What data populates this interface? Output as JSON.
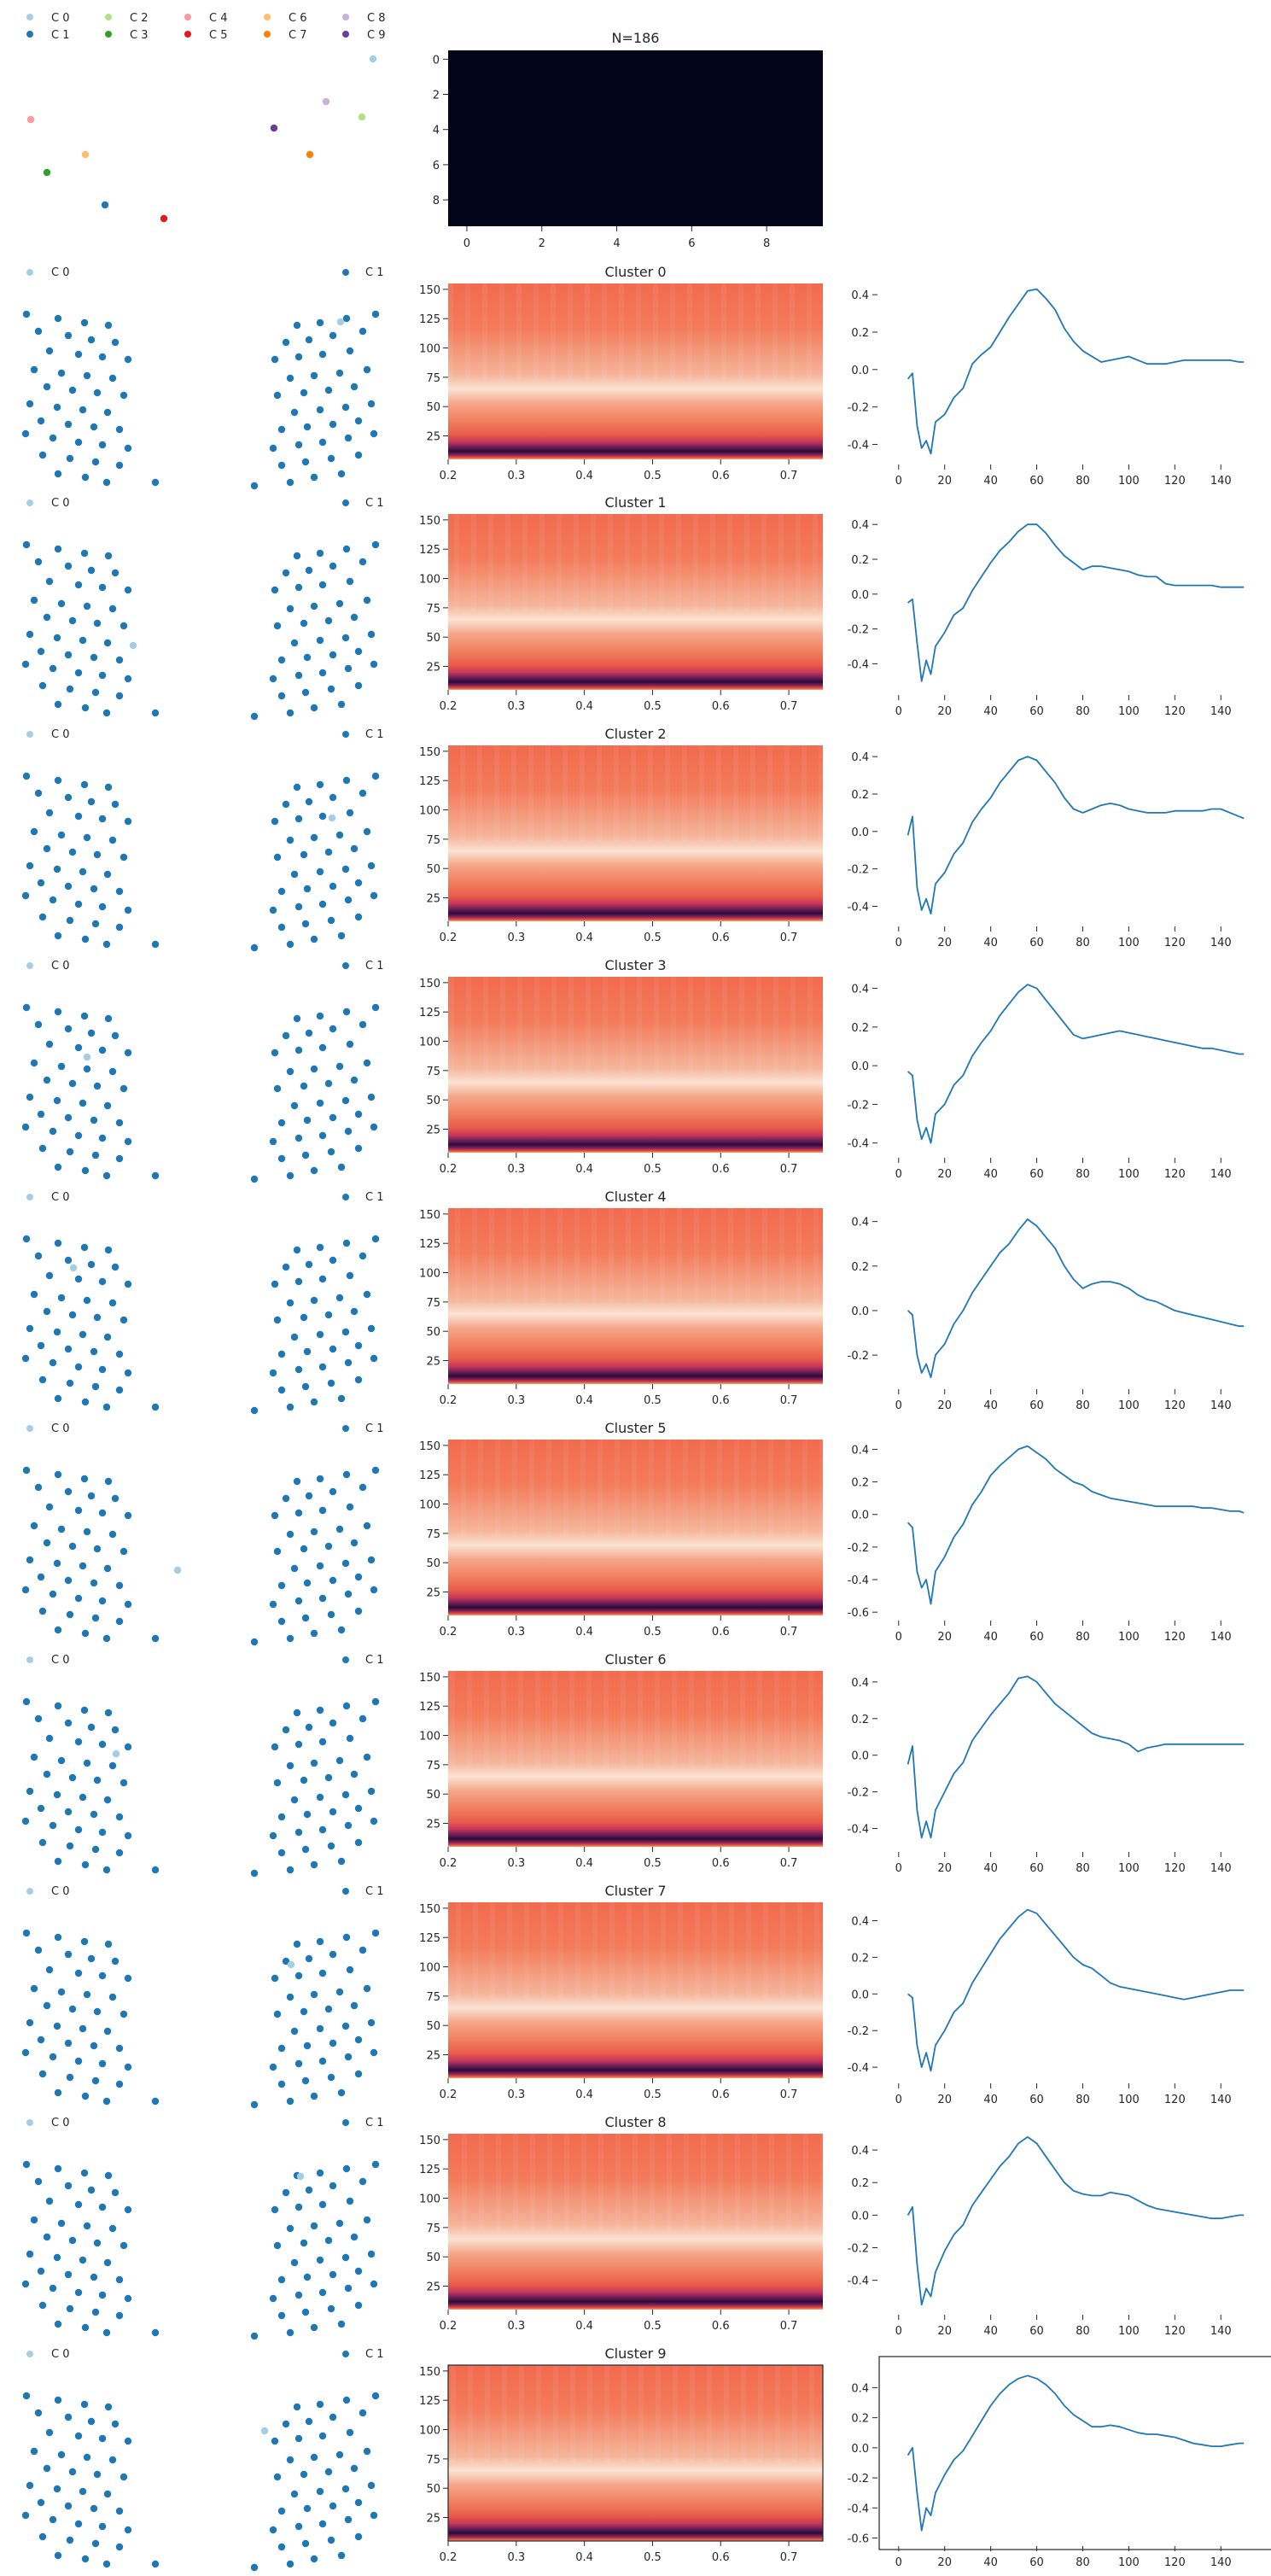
{
  "figure": {
    "top_row": {
      "legend": {
        "entries": [
          {
            "label": "C 0",
            "color": "#a6cee3"
          },
          {
            "label": "C 1",
            "color": "#1f78b4"
          },
          {
            "label": "C 2",
            "color": "#b2df8a"
          },
          {
            "label": "C 3",
            "color": "#33a02c"
          },
          {
            "label": "C 4",
            "color": "#fb9a99"
          },
          {
            "label": "C 5",
            "color": "#e31a1c"
          },
          {
            "label": "C 6",
            "color": "#fdbf6f"
          },
          {
            "label": "C 7",
            "color": "#ff7f00"
          },
          {
            "label": "C 8",
            "color": "#cab2d6"
          },
          {
            "label": "C 9",
            "color": "#6a3d9a"
          }
        ]
      },
      "heatmap_title": "N=186",
      "heatmap_color": "#03051a",
      "heatmap_xticks": [
        "0",
        "2",
        "4",
        "6",
        "8"
      ],
      "heatmap_yticks": [
        "0",
        "2",
        "4",
        "6",
        "8"
      ]
    },
    "cluster_legend": {
      "c0": "C 0",
      "c1": "C 1",
      "c0_color": "#a6cee3",
      "c1_color": "#1f78b4"
    },
    "spectrogram_xticks": [
      "0.2",
      "0.3",
      "0.4",
      "0.5",
      "0.6",
      "0.7"
    ],
    "spectrogram_yticks": [
      "25",
      "50",
      "75",
      "100",
      "125",
      "150"
    ],
    "line_xticks": [
      "0",
      "20",
      "40",
      "60",
      "80",
      "100",
      "120",
      "140"
    ],
    "line_color": "#1f77b4"
  },
  "chart_data": [
    {
      "type": "scatter",
      "title": "",
      "series": [
        {
          "name": "C 0",
          "values": []
        },
        {
          "name": "C 1",
          "values": []
        },
        {
          "name": "C 2",
          "values": []
        },
        {
          "name": "C 3",
          "values": []
        },
        {
          "name": "C 4",
          "values": []
        },
        {
          "name": "C 5",
          "values": []
        },
        {
          "name": "C 6",
          "values": []
        },
        {
          "name": "C 7",
          "values": []
        },
        {
          "name": "C 8",
          "values": []
        },
        {
          "name": "C 9",
          "values": []
        }
      ]
    },
    {
      "type": "heatmap",
      "title": "N=186",
      "x": [
        0,
        1,
        2,
        3,
        4,
        5,
        6,
        7,
        8,
        9
      ],
      "y": [
        0,
        1,
        2,
        3,
        4,
        5,
        6,
        7,
        8,
        9
      ]
    },
    {
      "type": "heatmap",
      "title": "Cluster 0",
      "xlim": [
        0.2,
        0.75
      ],
      "ylim": [
        5,
        155
      ]
    },
    {
      "type": "line",
      "title": "",
      "x": [
        4,
        6,
        8,
        10,
        12,
        14,
        16,
        20,
        24,
        28,
        32,
        36,
        40,
        44,
        48,
        52,
        56,
        60,
        64,
        68,
        72,
        76,
        80,
        84,
        88,
        92,
        96,
        100,
        104,
        108,
        112,
        116,
        120,
        124,
        128,
        132,
        136,
        140,
        144,
        148,
        150
      ],
      "y": [
        -0.05,
        -0.02,
        -0.3,
        -0.42,
        -0.38,
        -0.45,
        -0.28,
        -0.24,
        -0.15,
        -0.1,
        0.03,
        0.08,
        0.12,
        0.2,
        0.28,
        0.35,
        0.42,
        0.43,
        0.38,
        0.32,
        0.22,
        0.15,
        0.1,
        0.07,
        0.04,
        0.05,
        0.06,
        0.07,
        0.05,
        0.03,
        0.03,
        0.03,
        0.04,
        0.05,
        0.05,
        0.05,
        0.05,
        0.05,
        0.05,
        0.04,
        0.04
      ],
      "ylim": [
        -0.48,
        0.46
      ]
    },
    {
      "type": "heatmap",
      "title": "Cluster 1",
      "xlim": [
        0.2,
        0.75
      ],
      "ylim": [
        5,
        155
      ]
    },
    {
      "type": "line",
      "title": "",
      "x": [
        4,
        6,
        8,
        10,
        12,
        14,
        16,
        20,
        24,
        28,
        32,
        36,
        40,
        44,
        48,
        52,
        56,
        60,
        64,
        68,
        72,
        76,
        80,
        84,
        88,
        92,
        96,
        100,
        104,
        108,
        112,
        116,
        120,
        124,
        128,
        132,
        136,
        140,
        144,
        148,
        150
      ],
      "y": [
        -0.05,
        -0.03,
        -0.28,
        -0.5,
        -0.38,
        -0.46,
        -0.3,
        -0.22,
        -0.12,
        -0.08,
        0.02,
        0.1,
        0.18,
        0.25,
        0.3,
        0.36,
        0.4,
        0.4,
        0.35,
        0.28,
        0.22,
        0.18,
        0.14,
        0.16,
        0.16,
        0.15,
        0.14,
        0.13,
        0.11,
        0.1,
        0.1,
        0.06,
        0.05,
        0.05,
        0.05,
        0.05,
        0.05,
        0.04,
        0.04,
        0.04,
        0.04
      ],
      "ylim": [
        -0.55,
        0.46
      ]
    },
    {
      "type": "heatmap",
      "title": "Cluster 2",
      "xlim": [
        0.2,
        0.75
      ],
      "ylim": [
        5,
        155
      ]
    },
    {
      "type": "line",
      "title": "",
      "x": [
        4,
        6,
        8,
        10,
        12,
        14,
        16,
        20,
        24,
        28,
        32,
        36,
        40,
        44,
        48,
        52,
        56,
        60,
        64,
        68,
        72,
        76,
        80,
        84,
        88,
        92,
        96,
        100,
        104,
        108,
        112,
        116,
        120,
        124,
        128,
        132,
        136,
        140,
        144,
        148,
        150
      ],
      "y": [
        -0.02,
        0.08,
        -0.3,
        -0.42,
        -0.36,
        -0.44,
        -0.28,
        -0.22,
        -0.12,
        -0.06,
        0.05,
        0.12,
        0.18,
        0.26,
        0.32,
        0.38,
        0.4,
        0.38,
        0.32,
        0.26,
        0.18,
        0.12,
        0.1,
        0.12,
        0.14,
        0.15,
        0.14,
        0.12,
        0.11,
        0.1,
        0.1,
        0.1,
        0.11,
        0.11,
        0.11,
        0.11,
        0.12,
        0.12,
        0.1,
        0.08,
        0.07
      ],
      "ylim": [
        -0.48,
        0.46
      ]
    },
    {
      "type": "heatmap",
      "title": "Cluster 3",
      "xlim": [
        0.2,
        0.75
      ],
      "ylim": [
        5,
        155
      ]
    },
    {
      "type": "line",
      "title": "",
      "x": [
        4,
        6,
        8,
        10,
        12,
        14,
        16,
        20,
        24,
        28,
        32,
        36,
        40,
        44,
        48,
        52,
        56,
        60,
        64,
        68,
        72,
        76,
        80,
        84,
        88,
        92,
        96,
        100,
        104,
        108,
        112,
        116,
        120,
        124,
        128,
        132,
        136,
        140,
        144,
        148,
        150
      ],
      "y": [
        -0.03,
        -0.05,
        -0.28,
        -0.38,
        -0.32,
        -0.4,
        -0.25,
        -0.2,
        -0.1,
        -0.05,
        0.05,
        0.12,
        0.18,
        0.26,
        0.32,
        0.38,
        0.42,
        0.4,
        0.34,
        0.28,
        0.22,
        0.16,
        0.14,
        0.15,
        0.16,
        0.17,
        0.18,
        0.17,
        0.16,
        0.15,
        0.14,
        0.13,
        0.12,
        0.11,
        0.1,
        0.09,
        0.09,
        0.08,
        0.07,
        0.06,
        0.06
      ],
      "ylim": [
        -0.45,
        0.46
      ]
    },
    {
      "type": "heatmap",
      "title": "Cluster 4",
      "xlim": [
        0.2,
        0.75
      ],
      "ylim": [
        5,
        155
      ]
    },
    {
      "type": "line",
      "title": "",
      "x": [
        4,
        6,
        8,
        10,
        12,
        14,
        16,
        20,
        24,
        28,
        32,
        36,
        40,
        44,
        48,
        52,
        56,
        60,
        64,
        68,
        72,
        76,
        80,
        84,
        88,
        92,
        96,
        100,
        104,
        108,
        112,
        116,
        120,
        124,
        128,
        132,
        136,
        140,
        144,
        148,
        150
      ],
      "y": [
        0.0,
        -0.02,
        -0.2,
        -0.28,
        -0.24,
        -0.3,
        -0.2,
        -0.15,
        -0.06,
        0.0,
        0.08,
        0.14,
        0.2,
        0.26,
        0.3,
        0.36,
        0.41,
        0.38,
        0.33,
        0.28,
        0.2,
        0.14,
        0.1,
        0.12,
        0.13,
        0.13,
        0.12,
        0.1,
        0.07,
        0.05,
        0.04,
        0.02,
        0.0,
        -0.01,
        -0.02,
        -0.03,
        -0.04,
        -0.05,
        -0.06,
        -0.07,
        -0.07
      ],
      "ylim": [
        -0.33,
        0.46
      ]
    },
    {
      "type": "heatmap",
      "title": "Cluster 5",
      "xlim": [
        0.2,
        0.75
      ],
      "ylim": [
        5,
        155
      ]
    },
    {
      "type": "line",
      "title": "",
      "x": [
        4,
        6,
        8,
        10,
        12,
        14,
        16,
        20,
        24,
        28,
        32,
        36,
        40,
        44,
        48,
        52,
        56,
        60,
        64,
        68,
        72,
        76,
        80,
        84,
        88,
        92,
        96,
        100,
        104,
        108,
        112,
        116,
        120,
        124,
        128,
        132,
        136,
        140,
        144,
        148,
        150
      ],
      "y": [
        -0.05,
        -0.08,
        -0.35,
        -0.45,
        -0.4,
        -0.55,
        -0.35,
        -0.26,
        -0.14,
        -0.06,
        0.06,
        0.14,
        0.24,
        0.3,
        0.35,
        0.4,
        0.42,
        0.38,
        0.34,
        0.28,
        0.24,
        0.2,
        0.18,
        0.14,
        0.12,
        0.1,
        0.09,
        0.08,
        0.07,
        0.06,
        0.05,
        0.05,
        0.05,
        0.05,
        0.05,
        0.04,
        0.04,
        0.03,
        0.02,
        0.02,
        0.01
      ],
      "ylim": [
        -0.62,
        0.46
      ]
    },
    {
      "type": "heatmap",
      "title": "Cluster 6",
      "xlim": [
        0.2,
        0.75
      ],
      "ylim": [
        5,
        155
      ]
    },
    {
      "type": "line",
      "title": "",
      "x": [
        4,
        6,
        8,
        10,
        12,
        14,
        16,
        20,
        24,
        28,
        32,
        36,
        40,
        44,
        48,
        52,
        56,
        60,
        64,
        68,
        72,
        76,
        80,
        84,
        88,
        92,
        96,
        100,
        104,
        108,
        112,
        116,
        120,
        124,
        128,
        132,
        136,
        140,
        144,
        148,
        150
      ],
      "y": [
        -0.05,
        0.05,
        -0.3,
        -0.45,
        -0.36,
        -0.45,
        -0.3,
        -0.2,
        -0.1,
        -0.04,
        0.08,
        0.15,
        0.22,
        0.28,
        0.34,
        0.42,
        0.43,
        0.4,
        0.34,
        0.28,
        0.24,
        0.2,
        0.16,
        0.12,
        0.1,
        0.09,
        0.08,
        0.06,
        0.02,
        0.04,
        0.05,
        0.06,
        0.06,
        0.06,
        0.06,
        0.06,
        0.06,
        0.06,
        0.06,
        0.06,
        0.06
      ],
      "ylim": [
        -0.5,
        0.46
      ]
    },
    {
      "type": "heatmap",
      "title": "Cluster 7",
      "xlim": [
        0.2,
        0.75
      ],
      "ylim": [
        5,
        155
      ]
    },
    {
      "type": "line",
      "title": "",
      "x": [
        4,
        6,
        8,
        10,
        12,
        14,
        16,
        20,
        24,
        28,
        32,
        36,
        40,
        44,
        48,
        52,
        56,
        60,
        64,
        68,
        72,
        76,
        80,
        84,
        88,
        92,
        96,
        100,
        104,
        108,
        112,
        116,
        120,
        124,
        128,
        132,
        136,
        140,
        144,
        148,
        150
      ],
      "y": [
        0.0,
        -0.02,
        -0.28,
        -0.4,
        -0.32,
        -0.42,
        -0.28,
        -0.2,
        -0.1,
        -0.05,
        0.06,
        0.14,
        0.22,
        0.3,
        0.36,
        0.42,
        0.46,
        0.44,
        0.38,
        0.32,
        0.26,
        0.2,
        0.16,
        0.14,
        0.1,
        0.06,
        0.04,
        0.03,
        0.02,
        0.01,
        0.0,
        -0.01,
        -0.02,
        -0.03,
        -0.02,
        -0.01,
        0.0,
        0.01,
        0.02,
        0.02,
        0.02
      ],
      "ylim": [
        -0.46,
        0.5
      ]
    },
    {
      "type": "heatmap",
      "title": "Cluster 8",
      "xlim": [
        0.2,
        0.75
      ],
      "ylim": [
        5,
        155
      ]
    },
    {
      "type": "line",
      "title": "",
      "x": [
        4,
        6,
        8,
        10,
        12,
        14,
        16,
        20,
        24,
        28,
        32,
        36,
        40,
        44,
        48,
        52,
        56,
        60,
        64,
        68,
        72,
        76,
        80,
        84,
        88,
        92,
        96,
        100,
        104,
        108,
        112,
        116,
        120,
        124,
        128,
        132,
        136,
        140,
        144,
        148,
        150
      ],
      "y": [
        0.0,
        0.05,
        -0.3,
        -0.55,
        -0.45,
        -0.5,
        -0.35,
        -0.22,
        -0.12,
        -0.06,
        0.06,
        0.14,
        0.22,
        0.3,
        0.36,
        0.44,
        0.48,
        0.44,
        0.36,
        0.28,
        0.2,
        0.15,
        0.13,
        0.12,
        0.12,
        0.14,
        0.13,
        0.12,
        0.09,
        0.06,
        0.04,
        0.03,
        0.02,
        0.01,
        0.0,
        -0.01,
        -0.02,
        -0.02,
        -0.01,
        0.0,
        0.0
      ],
      "ylim": [
        -0.58,
        0.5
      ]
    },
    {
      "type": "heatmap",
      "title": "Cluster 9",
      "xlim": [
        0.2,
        0.75
      ],
      "ylim": [
        5,
        155
      ]
    },
    {
      "type": "line",
      "title": "",
      "x": [
        4,
        6,
        8,
        10,
        12,
        14,
        16,
        20,
        24,
        28,
        32,
        36,
        40,
        44,
        48,
        52,
        56,
        60,
        64,
        68,
        72,
        76,
        80,
        84,
        88,
        92,
        96,
        100,
        104,
        108,
        112,
        116,
        120,
        124,
        128,
        132,
        136,
        140,
        144,
        148,
        150
      ],
      "y": [
        -0.05,
        0.0,
        -0.3,
        -0.55,
        -0.4,
        -0.45,
        -0.3,
        -0.18,
        -0.08,
        -0.02,
        0.08,
        0.18,
        0.28,
        0.36,
        0.42,
        0.46,
        0.48,
        0.46,
        0.42,
        0.36,
        0.28,
        0.22,
        0.18,
        0.14,
        0.14,
        0.15,
        0.14,
        0.12,
        0.1,
        0.09,
        0.09,
        0.08,
        0.07,
        0.05,
        0.03,
        0.02,
        0.01,
        0.01,
        0.02,
        0.03,
        0.03
      ],
      "ylim": [
        -0.62,
        0.55
      ]
    }
  ]
}
